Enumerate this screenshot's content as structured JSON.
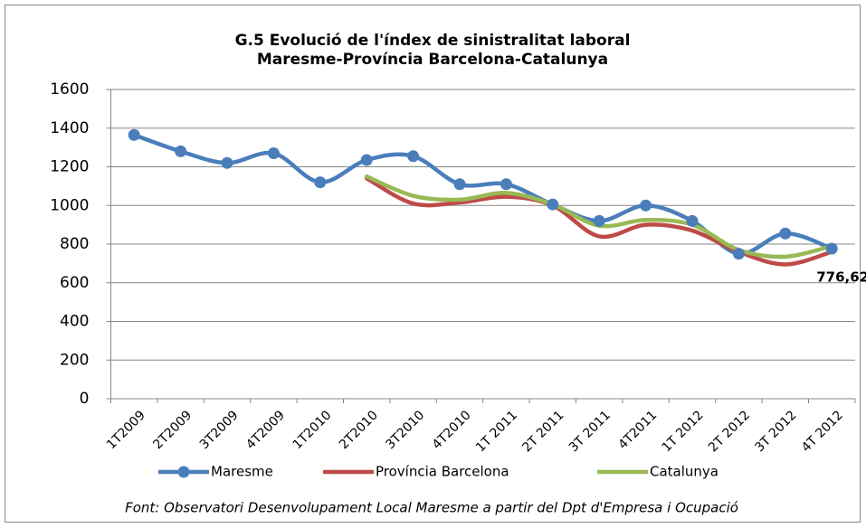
{
  "chart_data": {
    "type": "line",
    "title": "G.5 Evolució de l'índex de sinistralitat laboral",
    "subtitle": "Maresme-Província Barcelona-Catalunya",
    "source": "Font: Observatori Desenvolupament Local Maresme a partir del Dpt d'Empresa i Ocupació",
    "categories": [
      "1T2009",
      "2T2009",
      "3T2009",
      "4T2009",
      "1T2010",
      "2T2010",
      "3T2010",
      "4T2010",
      "1T 2011",
      "2T 2011",
      "3T 2011",
      "4T2011",
      "1T 2012",
      "2T 2012",
      "3T 2012",
      "4T 2012"
    ],
    "series": [
      {
        "name": "Maresme",
        "color": "#4a7ebb",
        "markers": true,
        "values": [
          1365,
          1280,
          1220,
          1270,
          1120,
          1235,
          1255,
          1110,
          1110,
          1005,
          920,
          1000,
          920,
          750,
          855,
          776.62
        ],
        "value_labels": [
          null,
          null,
          null,
          null,
          null,
          null,
          null,
          null,
          null,
          null,
          null,
          null,
          null,
          null,
          null,
          "776,62"
        ]
      },
      {
        "name": "Província Barcelona",
        "color": "#be4b48",
        "markers": false,
        "values": [
          null,
          null,
          null,
          null,
          null,
          1140,
          1010,
          1015,
          1045,
          1000,
          840,
          900,
          870,
          760,
          695,
          760
        ]
      },
      {
        "name": "Catalunya",
        "color": "#98b954",
        "markers": false,
        "values": [
          null,
          null,
          null,
          null,
          null,
          1150,
          1050,
          1030,
          1065,
          1005,
          895,
          925,
          900,
          770,
          735,
          790
        ]
      }
    ],
    "ylim": [
      0,
      1600
    ],
    "yticks": [
      0,
      200,
      400,
      600,
      800,
      1000,
      1200,
      1400,
      1600
    ],
    "grid": true,
    "smooth": true,
    "legend": "bottom"
  }
}
